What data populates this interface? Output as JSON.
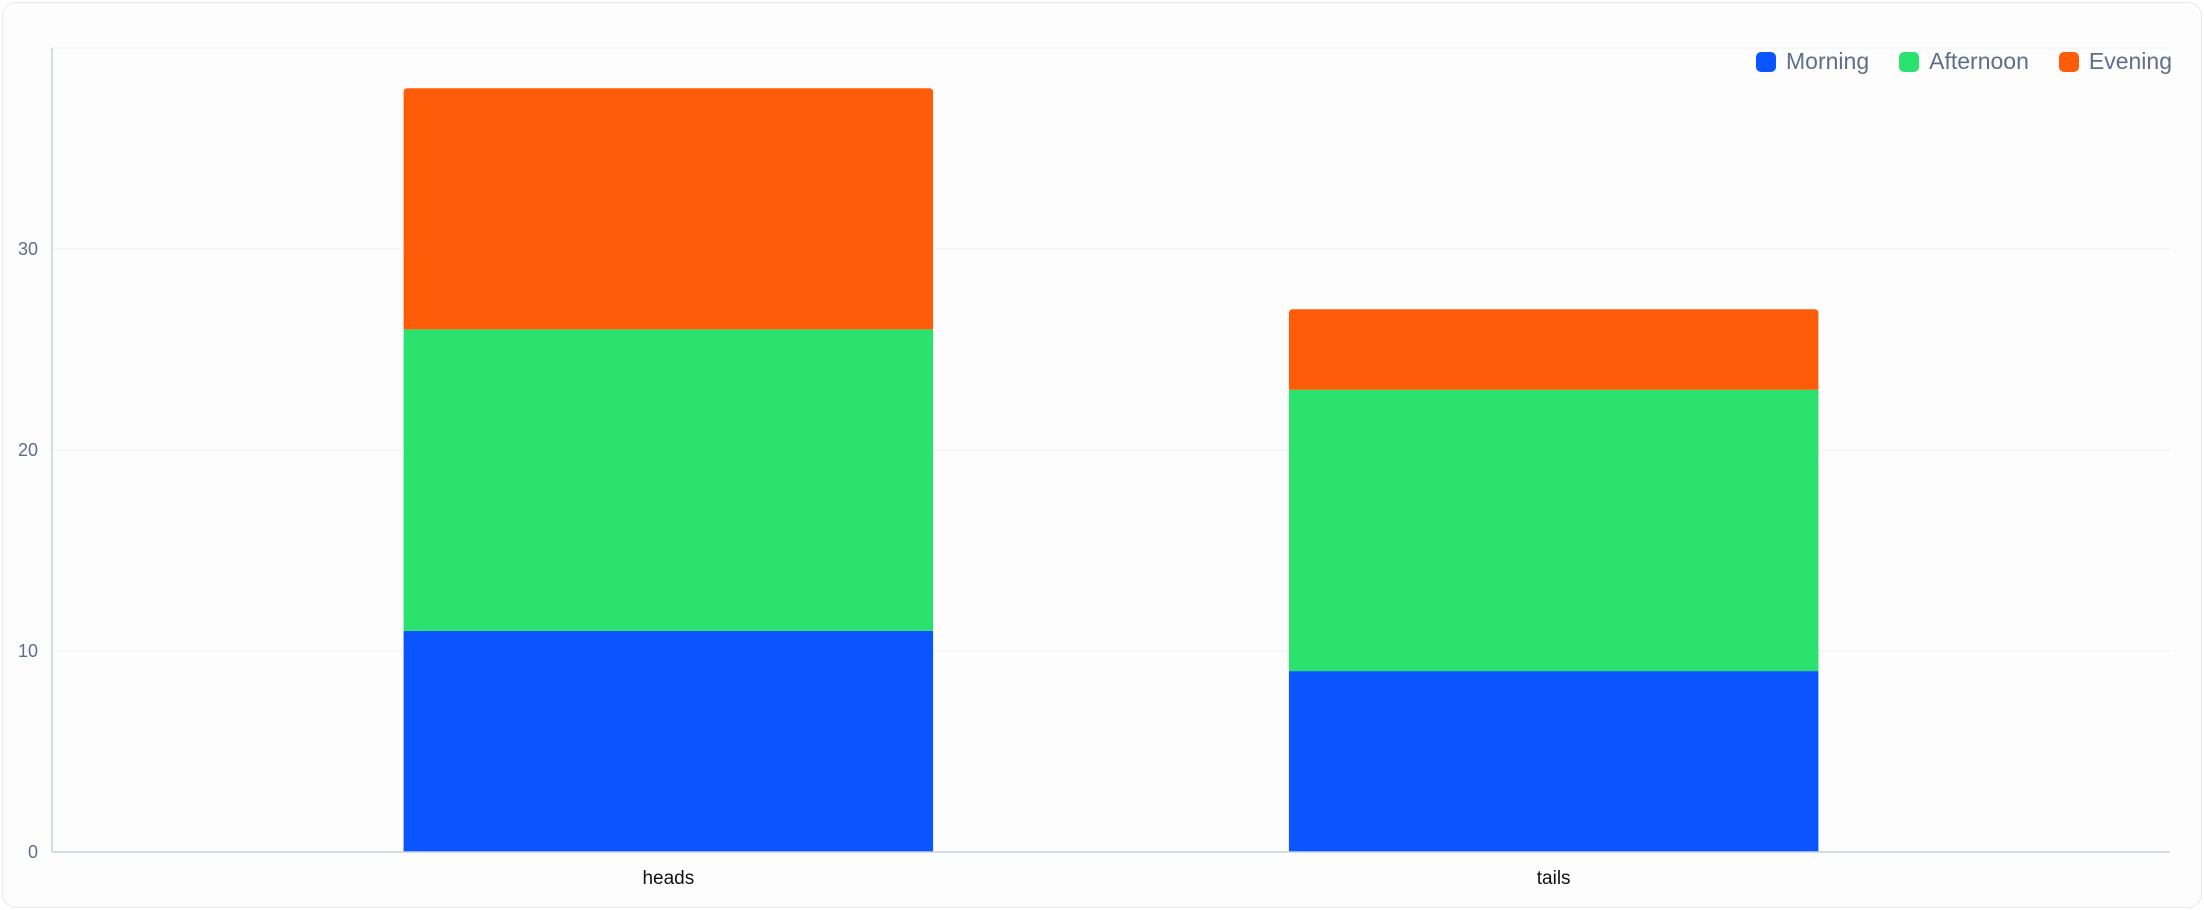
{
  "chart_data": {
    "type": "bar",
    "stacked": true,
    "title": "",
    "xlabel": "",
    "ylabel": "",
    "categories": [
      "heads",
      "tails"
    ],
    "series": [
      {
        "name": "Morning",
        "values": [
          11,
          9
        ],
        "color": "#0a55ff"
      },
      {
        "name": "Afternoon",
        "values": [
          15,
          14
        ],
        "color": "#2ce26f"
      },
      {
        "name": "Evening",
        "values": [
          12,
          4
        ],
        "color": "#ff5c0a"
      }
    ],
    "ylim": [
      0,
      40
    ],
    "yticks": [
      0,
      10,
      20,
      30
    ],
    "grid": true,
    "legend": "top-right"
  }
}
